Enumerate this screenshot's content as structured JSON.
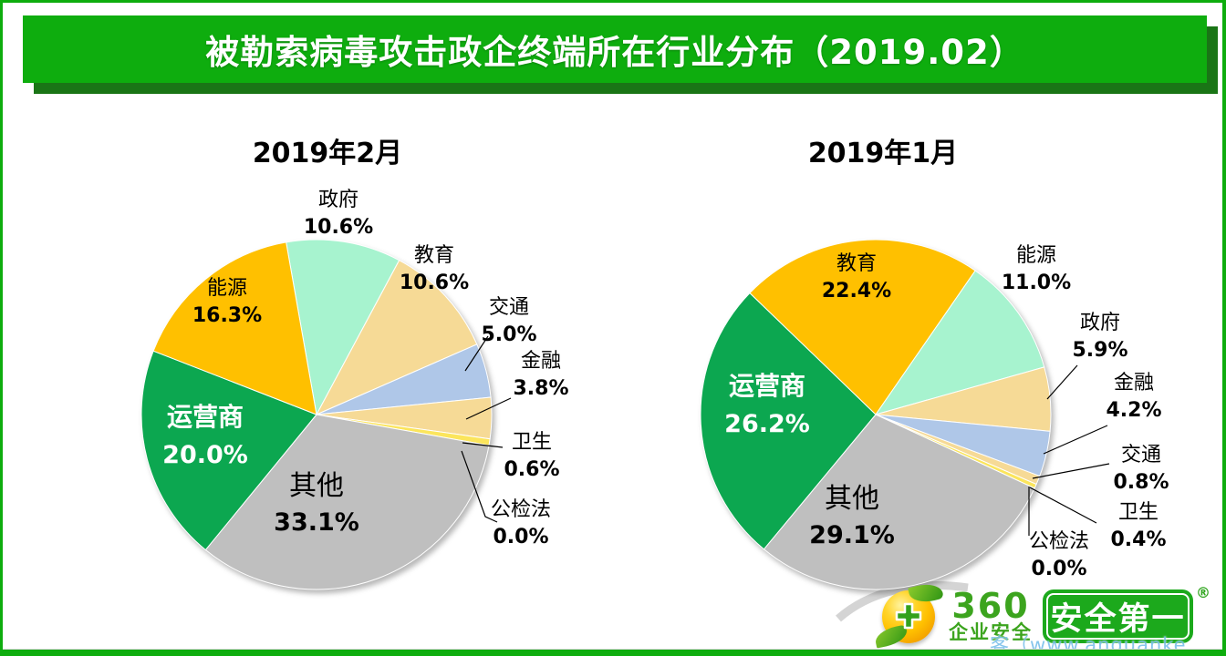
{
  "page": {
    "title": "被勒索病毒攻击政企终端所在行业分布（2019.02）",
    "colors": {
      "banner_green": "#0EAD0E",
      "banner_shadow_green": "#1A7516",
      "border_green": "#0EAD0E"
    }
  },
  "chart_data": [
    {
      "type": "pie",
      "title": "2019年2月",
      "start_angle_deg": 350,
      "legend_position": "none",
      "labels_style": "category name + percent, large slices labeled inside, small slices outside with leader lines",
      "slices": [
        {
          "name": "政府",
          "value": 10.6,
          "text": "10.6%",
          "color": "#A7F3CF"
        },
        {
          "name": "教育",
          "value": 10.6,
          "text": "10.6%",
          "color": "#F6DA96"
        },
        {
          "name": "交通",
          "value": 5.0,
          "text": "5.0%",
          "color": "#AFC7E8"
        },
        {
          "name": "金融",
          "value": 3.8,
          "text": "3.8%",
          "color": "#F6DA96"
        },
        {
          "name": "卫生",
          "value": 0.6,
          "text": "0.6%",
          "color": "#FBE55C"
        },
        {
          "name": "公检法",
          "value": 0.0,
          "text": "0.0%",
          "color": "#FBE55C"
        },
        {
          "name": "其他",
          "value": 33.1,
          "text": "33.1%",
          "color": "#BFBFBF"
        },
        {
          "name": "运营商",
          "value": 20.0,
          "text": "20.0%",
          "color": "#0CA750"
        },
        {
          "name": "能源",
          "value": 16.3,
          "text": "16.3%",
          "color": "#FFC000"
        }
      ]
    },
    {
      "type": "pie",
      "title": "2019年1月",
      "start_angle_deg": 314,
      "legend_position": "none",
      "labels_style": "category name + percent, large slices labeled inside, small slices outside with leader lines",
      "slices": [
        {
          "name": "教育",
          "value": 22.4,
          "text": "22.4%",
          "color": "#FFC000"
        },
        {
          "name": "能源",
          "value": 11.0,
          "text": "11.0%",
          "color": "#A7F3CF"
        },
        {
          "name": "政府",
          "value": 5.9,
          "text": "5.9%",
          "color": "#F6DA96"
        },
        {
          "name": "金融",
          "value": 4.2,
          "text": "4.2%",
          "color": "#AFC7E8"
        },
        {
          "name": "交通",
          "value": 0.8,
          "text": "0.8%",
          "color": "#F6DA96"
        },
        {
          "name": "卫生",
          "value": 0.4,
          "text": "0.4%",
          "color": "#FBE55C"
        },
        {
          "name": "公检法",
          "value": 0.0,
          "text": "0.0%",
          "color": "#FBE55C"
        },
        {
          "name": "其他",
          "value": 29.1,
          "text": "29.1%",
          "color": "#BFBFBF"
        },
        {
          "name": "运营商",
          "value": 26.2,
          "text": "26.2%",
          "color": "#0CA750"
        }
      ]
    }
  ],
  "footer": {
    "logo_text": "360",
    "logo_subtext": "企业安全",
    "badge_text": "安全第一",
    "registered_mark": "®",
    "watermark": "客（www.anquanke",
    "logo_green": "#3CA41E",
    "badge_green": "#1CA91C"
  }
}
